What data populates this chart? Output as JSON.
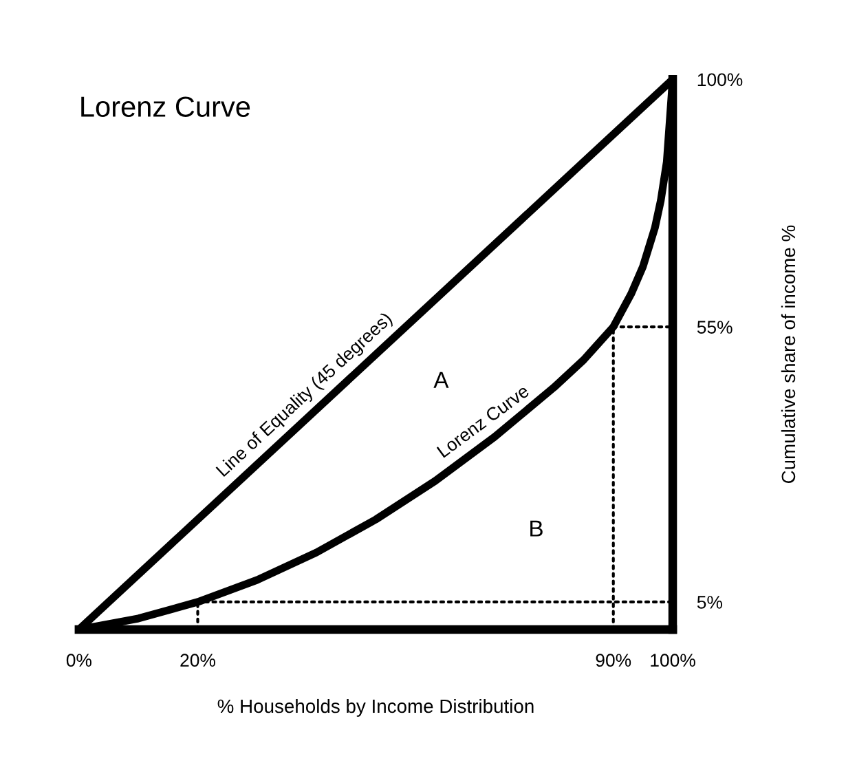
{
  "chart_data": {
    "type": "line",
    "title": "Lorenz Curve",
    "xlabel": "% Households by Income Distribution",
    "ylabel": "Cumulative share of income %",
    "xlim": [
      0,
      100
    ],
    "ylim": [
      0,
      100
    ],
    "xticks": [
      {
        "value": 0,
        "label": "0%"
      },
      {
        "value": 20,
        "label": "20%"
      },
      {
        "value": 90,
        "label": "90%"
      },
      {
        "value": 100,
        "label": "100%"
      }
    ],
    "yticks": [
      {
        "value": 5,
        "label": "5%"
      },
      {
        "value": 55,
        "label": "55%"
      },
      {
        "value": 100,
        "label": "100%"
      }
    ],
    "grid": false,
    "legend": false,
    "marker": "none",
    "series": [
      {
        "color": "#000000",
        "line_style": "solid",
        "x": [
          0,
          100
        ],
        "values": [
          0,
          100
        ]
      },
      {
        "color": "#000000",
        "line_style": "solid",
        "x": [
          0,
          10,
          20,
          30,
          40,
          50,
          60,
          70,
          80,
          85,
          90,
          93,
          95,
          97,
          98,
          99,
          100
        ],
        "values": [
          0,
          2,
          5,
          9,
          14,
          20,
          27,
          35,
          44,
          49,
          55,
          61,
          66,
          73,
          78,
          85,
          100
        ]
      },
      {
        "color": "#000000",
        "line_style": "dotted",
        "x": [
          20,
          20
        ],
        "values": [
          0,
          5
        ]
      },
      {
        "color": "#000000",
        "line_style": "dotted",
        "x": [
          20,
          100
        ],
        "values": [
          5,
          5
        ]
      },
      {
        "color": "#000000",
        "line_style": "dotted",
        "x": [
          90,
          90
        ],
        "values": [
          0,
          55
        ]
      },
      {
        "color": "#000000",
        "line_style": "dotted",
        "x": [
          90,
          100
        ],
        "values": [
          55,
          55
        ]
      }
    ],
    "ref_lines": [
      {
        "axis": "x",
        "value": 100,
        "color": "#000000",
        "line_style": "solid"
      }
    ],
    "annotations": [
      {
        "text": "Line of Equality (45 degrees)",
        "x": 40,
        "y": 40
      },
      {
        "text": "Lorenz Curve",
        "x": 70,
        "y": 35
      },
      "A",
      "B"
    ]
  }
}
